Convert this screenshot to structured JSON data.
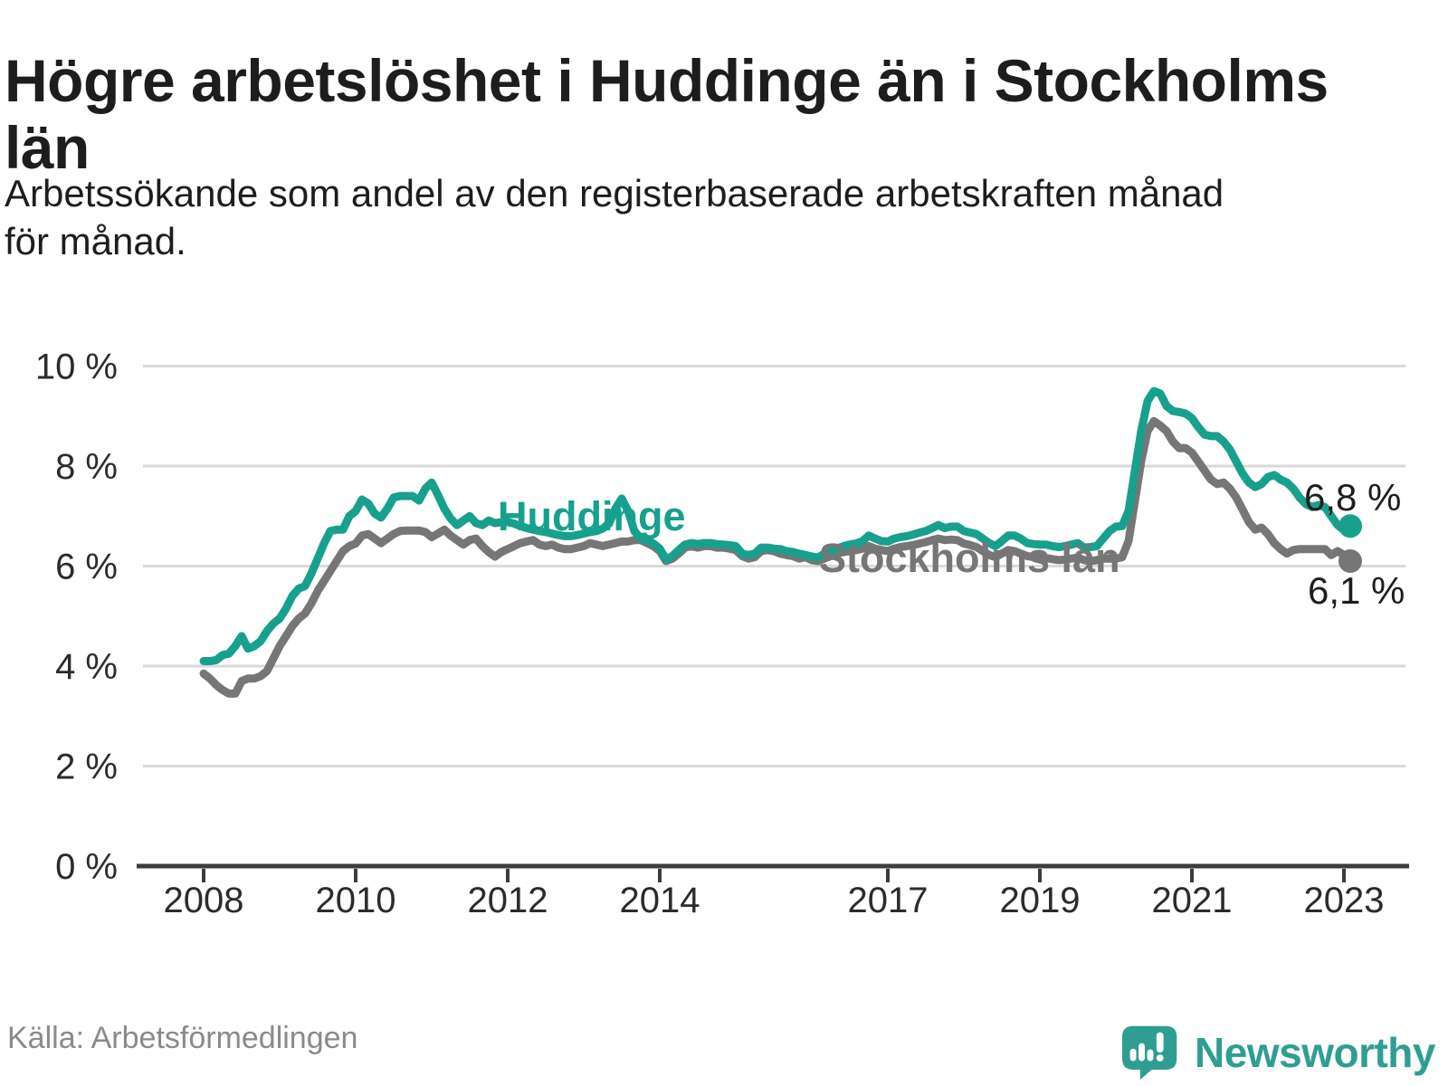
{
  "header": {
    "title": "Högre arbetslöshet i Huddinge än i Stockholms län",
    "title_lines": [
      "Högre arbetslöshet i Huddinge än i Stockholms",
      "län"
    ],
    "subtitle": "Arbetssökande som andel av den registerbaserade arbetskraften månad för månad.",
    "subtitle_lines": [
      "Arbetssökande som andel av den registerbaserade arbetskraften månad",
      "för månad."
    ]
  },
  "footer": {
    "source": "Källa: Arbetsförmedlingen",
    "brand_name": "Newsworthy",
    "brand_logo_icon": "speech-bubble-bar-chart-icon"
  },
  "colors": {
    "huddinge": "#17a08e",
    "stockholm": "#767676",
    "grid": "#d9d9d9",
    "axis": "#3c3c3c",
    "text": "#1d1d1d",
    "axis_text": "#2b2b2b",
    "muted": "#8a8a8a",
    "brand": "#2f9e92",
    "background": "#ffffff"
  },
  "chart_data": {
    "type": "line",
    "title": "Högre arbetslöshet i Huddinge än i Stockholms län",
    "subtitle": "Arbetssökande som andel av den registerbaserade arbetskraften månad för månad.",
    "unit": "%",
    "x_frequency": "monthly",
    "x_range": [
      "2008-01",
      "2023-02"
    ],
    "x_start_year": 2008,
    "x_ticks": [
      2008,
      2010,
      2012,
      2014,
      2017,
      2019,
      2021,
      2023
    ],
    "ylim": [
      0,
      10
    ],
    "y_ticks": [
      0,
      2,
      4,
      6,
      8,
      10
    ],
    "y_tick_suffix": " %",
    "grid": "horizontal",
    "legend": "inline-labels-on-lines",
    "series": [
      {
        "name": "Huddinge",
        "color": "#17a08e",
        "end_value": 6.8,
        "end_value_label": "6,8 %",
        "values": [
          4.1,
          4.1,
          4.12,
          4.22,
          4.25,
          4.4,
          4.6,
          4.35,
          4.4,
          4.5,
          4.7,
          4.85,
          4.95,
          5.15,
          5.4,
          5.55,
          5.6,
          5.85,
          6.15,
          6.45,
          6.7,
          6.73,
          6.73,
          7.0,
          7.1,
          7.33,
          7.25,
          7.05,
          6.97,
          7.15,
          7.37,
          7.4,
          7.4,
          7.4,
          7.31,
          7.55,
          7.67,
          7.42,
          7.15,
          6.95,
          6.82,
          6.91,
          7.0,
          6.86,
          6.82,
          6.91,
          6.86,
          6.88,
          6.88,
          6.85,
          6.8,
          6.76,
          6.73,
          6.7,
          6.68,
          6.65,
          6.62,
          6.6,
          6.6,
          6.62,
          6.65,
          6.68,
          6.7,
          6.75,
          6.85,
          7.15,
          7.35,
          7.1,
          6.7,
          6.55,
          6.52,
          6.45,
          6.35,
          6.13,
          6.2,
          6.32,
          6.43,
          6.46,
          6.44,
          6.46,
          6.46,
          6.44,
          6.43,
          6.42,
          6.4,
          6.25,
          6.22,
          6.25,
          6.37,
          6.37,
          6.35,
          6.34,
          6.3,
          6.28,
          6.25,
          6.22,
          6.19,
          6.17,
          6.25,
          6.3,
          6.35,
          6.4,
          6.43,
          6.45,
          6.5,
          6.61,
          6.55,
          6.5,
          6.49,
          6.55,
          6.58,
          6.6,
          6.63,
          6.67,
          6.7,
          6.76,
          6.82,
          6.76,
          6.79,
          6.79,
          6.7,
          6.67,
          6.64,
          6.55,
          6.46,
          6.4,
          6.5,
          6.61,
          6.61,
          6.55,
          6.46,
          6.44,
          6.43,
          6.43,
          6.4,
          6.38,
          6.4,
          6.43,
          6.46,
          6.37,
          6.38,
          6.4,
          6.55,
          6.7,
          6.79,
          6.8,
          7.1,
          7.9,
          8.7,
          9.3,
          9.5,
          9.45,
          9.2,
          9.1,
          9.08,
          9.05,
          8.96,
          8.78,
          8.63,
          8.6,
          8.6,
          8.49,
          8.33,
          8.09,
          7.85,
          7.67,
          7.58,
          7.64,
          7.78,
          7.82,
          7.73,
          7.67,
          7.55,
          7.37,
          7.24,
          7.18,
          7.22,
          7.18,
          7.0,
          6.82,
          6.72,
          6.8
        ]
      },
      {
        "name": "Stockholms län",
        "color": "#767676",
        "end_value": 6.1,
        "end_value_label": "6,1 %",
        "values": [
          3.85,
          3.75,
          3.62,
          3.52,
          3.45,
          3.45,
          3.7,
          3.75,
          3.75,
          3.8,
          3.9,
          4.15,
          4.4,
          4.6,
          4.8,
          4.95,
          5.05,
          5.25,
          5.5,
          5.7,
          5.9,
          6.1,
          6.3,
          6.4,
          6.45,
          6.61,
          6.64,
          6.55,
          6.46,
          6.55,
          6.64,
          6.7,
          6.71,
          6.71,
          6.71,
          6.68,
          6.58,
          6.65,
          6.73,
          6.61,
          6.52,
          6.43,
          6.52,
          6.55,
          6.4,
          6.28,
          6.19,
          6.28,
          6.34,
          6.4,
          6.46,
          6.49,
          6.52,
          6.43,
          6.4,
          6.43,
          6.37,
          6.34,
          6.34,
          6.37,
          6.4,
          6.46,
          6.43,
          6.4,
          6.43,
          6.46,
          6.49,
          6.49,
          6.52,
          6.52,
          6.46,
          6.4,
          6.3,
          6.1,
          6.15,
          6.25,
          6.37,
          6.4,
          6.37,
          6.4,
          6.4,
          6.37,
          6.37,
          6.35,
          6.32,
          6.2,
          6.15,
          6.18,
          6.3,
          6.32,
          6.3,
          6.25,
          6.22,
          6.2,
          6.15,
          6.18,
          6.12,
          6.1,
          6.15,
          6.2,
          6.25,
          6.28,
          6.3,
          6.32,
          6.35,
          6.4,
          6.35,
          6.32,
          6.3,
          6.35,
          6.38,
          6.4,
          6.42,
          6.45,
          6.48,
          6.52,
          6.55,
          6.52,
          6.53,
          6.52,
          6.45,
          6.42,
          6.38,
          6.3,
          6.22,
          6.18,
          6.25,
          6.32,
          6.3,
          6.25,
          6.2,
          6.18,
          6.17,
          6.16,
          6.14,
          6.12,
          6.13,
          6.15,
          6.17,
          6.12,
          6.1,
          6.12,
          6.15,
          6.15,
          6.15,
          6.18,
          6.5,
          7.3,
          8.1,
          8.7,
          8.9,
          8.81,
          8.7,
          8.49,
          8.36,
          8.36,
          8.27,
          8.09,
          7.91,
          7.73,
          7.64,
          7.67,
          7.55,
          7.37,
          7.13,
          6.88,
          6.73,
          6.77,
          6.64,
          6.46,
          6.34,
          6.25,
          6.32,
          6.34,
          6.34,
          6.34,
          6.34,
          6.34,
          6.22,
          6.3,
          6.22,
          6.1
        ]
      }
    ]
  }
}
